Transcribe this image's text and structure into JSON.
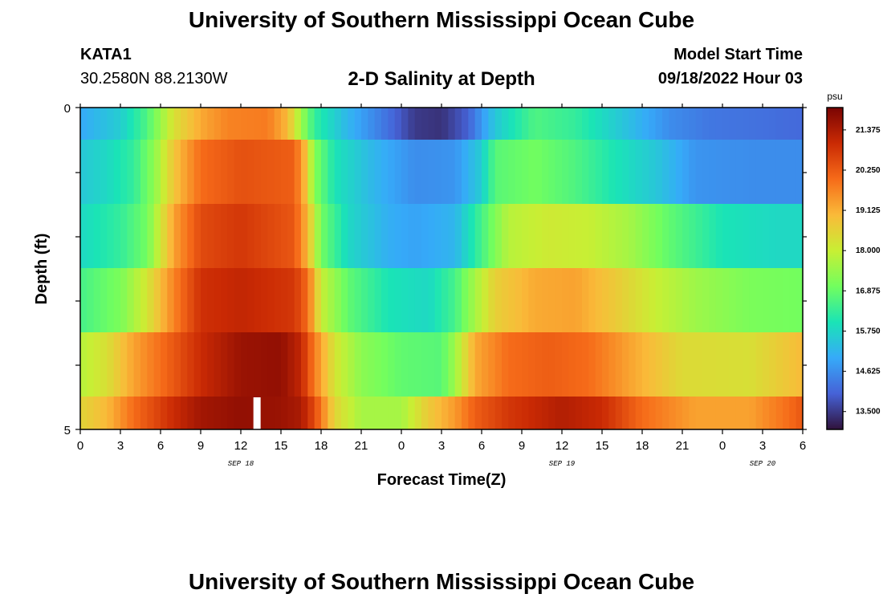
{
  "header": {
    "title": "University of Southern Mississippi Ocean Cube",
    "station": "KATA1",
    "coords": "30.2580N  88.2130W",
    "subtitle": "2-D Salinity at Depth",
    "model_start_label": "Model Start Time",
    "model_start_value": "09/18/2022 Hour 03"
  },
  "footer": {
    "title": "University of Southern Mississippi Ocean Cube"
  },
  "chart_data": {
    "type": "heatmap",
    "title": "2-D Salinity at Depth",
    "xlabel": "Forecast Time(Z)",
    "ylabel": "Depth (ft)",
    "y_tick_labels": [
      "0",
      "5"
    ],
    "ylim": [
      0,
      5
    ],
    "x_tick_labels": [
      "0",
      "3",
      "6",
      "9",
      "12",
      "15",
      "18",
      "21",
      "0",
      "3",
      "6",
      "9",
      "12",
      "15",
      "18",
      "21",
      "0",
      "3",
      "6"
    ],
    "date_labels": [
      {
        "text": "SEP 18",
        "tick_index": 4
      },
      {
        "text": "SEP 19",
        "tick_index": 12
      },
      {
        "text": "SEP 20",
        "tick_index": 17
      }
    ],
    "colorbar": {
      "unit": "psu",
      "min": 13.0,
      "max": 22.0,
      "ticks": [
        "21.375",
        "20.250",
        "19.125",
        "18.000",
        "16.875",
        "15.750",
        "14.625",
        "13.500"
      ],
      "stops": [
        "#30123b",
        "#4662d7",
        "#36aaf9",
        "#1ae4b6",
        "#72fe5e",
        "#c8ef34",
        "#faba39",
        "#f66b19",
        "#ca2a04",
        "#7a0403"
      ]
    },
    "hours_start": 0,
    "hours_end": 54,
    "rows": [
      {
        "depth_band": "0-0.5 ft",
        "keyframes": [
          [
            0,
            15.0
          ],
          [
            3,
            15.6
          ],
          [
            5,
            16.6
          ],
          [
            7,
            18.3
          ],
          [
            9,
            19.2
          ],
          [
            11,
            19.7
          ],
          [
            14,
            19.8
          ],
          [
            15.5,
            19.0
          ],
          [
            16.5,
            17.5
          ],
          [
            17.5,
            16.3
          ],
          [
            20,
            15.2
          ],
          [
            23,
            14.2
          ],
          [
            25,
            13.5
          ],
          [
            27,
            13.4
          ],
          [
            29,
            14.0
          ],
          [
            31,
            15.5
          ],
          [
            34,
            16.6
          ],
          [
            37,
            16.3
          ],
          [
            40,
            15.6
          ],
          [
            44,
            14.6
          ],
          [
            47,
            14.3
          ],
          [
            51,
            14.2
          ],
          [
            54,
            14.1
          ]
        ]
      },
      {
        "depth_band": "0.5-1.5 ft",
        "keyframes": [
          [
            0,
            15.5
          ],
          [
            2,
            15.8
          ],
          [
            4,
            16.3
          ],
          [
            5.5,
            17.3
          ],
          [
            7,
            18.8
          ],
          [
            9,
            20.0
          ],
          [
            12,
            20.4
          ],
          [
            16,
            20.2
          ],
          [
            16.8,
            19.0
          ],
          [
            17.5,
            17.2
          ],
          [
            19,
            16.0
          ],
          [
            22,
            15.2
          ],
          [
            25,
            14.6
          ],
          [
            28,
            14.7
          ],
          [
            30,
            15.6
          ],
          [
            31,
            16.7
          ],
          [
            34,
            17.0
          ],
          [
            37,
            16.6
          ],
          [
            40,
            16.0
          ],
          [
            43,
            15.5
          ],
          [
            46,
            14.7
          ],
          [
            50,
            14.6
          ],
          [
            54,
            14.6
          ]
        ]
      },
      {
        "depth_band": "1.5-2.5 ft",
        "keyframes": [
          [
            0,
            15.8
          ],
          [
            3,
            16.3
          ],
          [
            5,
            17.0
          ],
          [
            7,
            19.3
          ],
          [
            9,
            20.5
          ],
          [
            12,
            20.8
          ],
          [
            16,
            20.3
          ],
          [
            17,
            19.0
          ],
          [
            18,
            17.0
          ],
          [
            20,
            15.8
          ],
          [
            23,
            15.1
          ],
          [
            25,
            14.9
          ],
          [
            28,
            15.2
          ],
          [
            30,
            16.5
          ],
          [
            32,
            17.8
          ],
          [
            35,
            18.1
          ],
          [
            38,
            18.0
          ],
          [
            41,
            17.6
          ],
          [
            44,
            16.8
          ],
          [
            48,
            16.0
          ],
          [
            52,
            15.8
          ],
          [
            54,
            15.8
          ]
        ]
      },
      {
        "depth_band": "2.5-3.5 ft",
        "keyframes": [
          [
            0,
            16.5
          ],
          [
            3,
            17.1
          ],
          [
            5,
            18.2
          ],
          [
            7,
            19.7
          ],
          [
            9,
            20.9
          ],
          [
            12,
            21.1
          ],
          [
            16,
            20.8
          ],
          [
            17,
            20.0
          ],
          [
            18,
            18.0
          ],
          [
            20,
            16.8
          ],
          [
            23,
            16.0
          ],
          [
            26,
            15.8
          ],
          [
            28,
            16.5
          ],
          [
            29.5,
            17.6
          ],
          [
            31,
            18.6
          ],
          [
            34,
            19.2
          ],
          [
            37,
            19.3
          ],
          [
            40,
            18.7
          ],
          [
            43,
            18.0
          ],
          [
            46,
            17.5
          ],
          [
            50,
            17.1
          ],
          [
            54,
            17.0
          ]
        ]
      },
      {
        "depth_band": "3.5-4.5 ft",
        "keyframes": [
          [
            0,
            17.8
          ],
          [
            2,
            18.3
          ],
          [
            4,
            19.3
          ],
          [
            7,
            20.3
          ],
          [
            9,
            21.0
          ],
          [
            12,
            21.6
          ],
          [
            15,
            21.7
          ],
          [
            16.5,
            21.1
          ],
          [
            17.5,
            19.8
          ],
          [
            19,
            18.2
          ],
          [
            21,
            17.3
          ],
          [
            24,
            16.8
          ],
          [
            27,
            16.7
          ],
          [
            28,
            17.5
          ],
          [
            29.5,
            19.2
          ],
          [
            32,
            20.0
          ],
          [
            35,
            20.2
          ],
          [
            38,
            20.0
          ],
          [
            41,
            19.3
          ],
          [
            45,
            18.4
          ],
          [
            50,
            18.3
          ],
          [
            53,
            18.8
          ],
          [
            54,
            19.0
          ]
        ]
      },
      {
        "depth_band": "4.5-5 ft",
        "keyframes": [
          [
            0,
            18.5
          ],
          [
            2,
            19.0
          ],
          [
            4,
            20.0
          ],
          [
            7,
            21.0
          ],
          [
            9,
            21.5
          ],
          [
            12,
            21.7
          ],
          [
            15,
            21.6
          ],
          [
            16.5,
            21.4
          ],
          [
            17.5,
            20.5
          ],
          [
            19,
            18.5
          ],
          [
            21,
            17.6
          ],
          [
            24,
            17.6
          ],
          [
            26,
            18.7
          ],
          [
            28,
            19.4
          ],
          [
            29.5,
            20.2
          ],
          [
            32,
            20.8
          ],
          [
            36,
            21.3
          ],
          [
            39,
            21.0
          ],
          [
            42,
            20.0
          ],
          [
            46,
            19.3
          ],
          [
            50,
            19.3
          ],
          [
            53,
            20.0
          ],
          [
            54,
            20.3
          ]
        ]
      }
    ],
    "missing_marker_hour": 13
  }
}
